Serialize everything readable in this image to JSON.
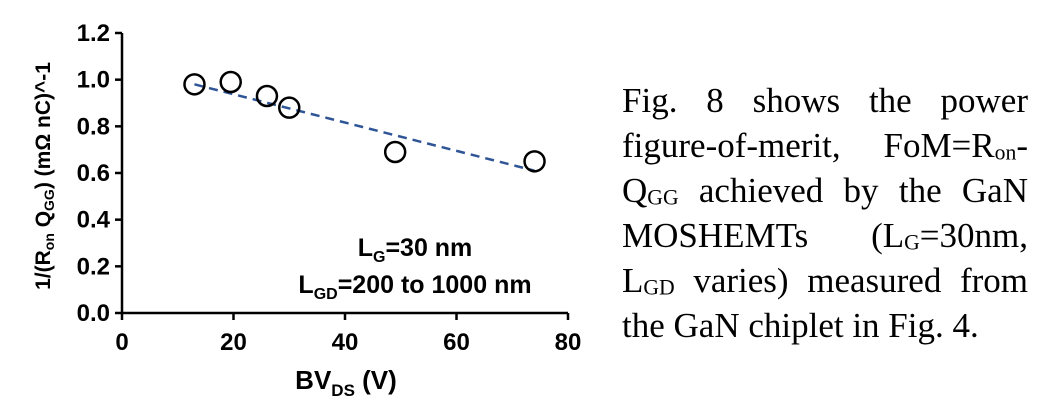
{
  "chart_data": {
    "type": "scatter",
    "xlabel": {
      "main": "BV",
      "sub": "DS",
      "unit": " (V)"
    },
    "ylabel": {
      "p1": "1/(R",
      "sub1": "on",
      "p2": " Q",
      "sub2": "GG",
      "p3": ") (mΩ nC)^-1"
    },
    "xlim": [
      0,
      80
    ],
    "ylim": [
      0.0,
      1.2
    ],
    "x_ticks": [
      "0",
      "20",
      "40",
      "60",
      "80"
    ],
    "y_ticks": [
      "0.0",
      "0.2",
      "0.4",
      "0.6",
      "0.8",
      "1.0",
      "1.2"
    ],
    "grid": false,
    "points": [
      {
        "x": 13,
        "y": 0.98
      },
      {
        "x": 19.5,
        "y": 0.99
      },
      {
        "x": 26,
        "y": 0.93
      },
      {
        "x": 30,
        "y": 0.88
      },
      {
        "x": 49,
        "y": 0.69
      },
      {
        "x": 74,
        "y": 0.65
      }
    ],
    "trendline": {
      "style": "dashed",
      "color": "#2f5597",
      "x": [
        13,
        74
      ],
      "y": [
        0.98,
        0.61
      ]
    },
    "annotations": [
      {
        "main": "L",
        "sub": "G",
        "rest": "=30 nm"
      },
      {
        "main": "L",
        "sub": "GD",
        "rest": "=200 to 1000 nm"
      }
    ]
  },
  "caption": {
    "t1": "Fig. 8 shows the power figure-of-merit, FoM=R",
    "s1": "on",
    "t2": "-Q",
    "s2": "GG",
    "t3": " achieved by the GaN MOSHEMTs (L",
    "s3": "G",
    "t4": "=30nm, L",
    "s4": "GD",
    "t5": " varies) measured from the GaN chiplet in Fig. 4."
  }
}
